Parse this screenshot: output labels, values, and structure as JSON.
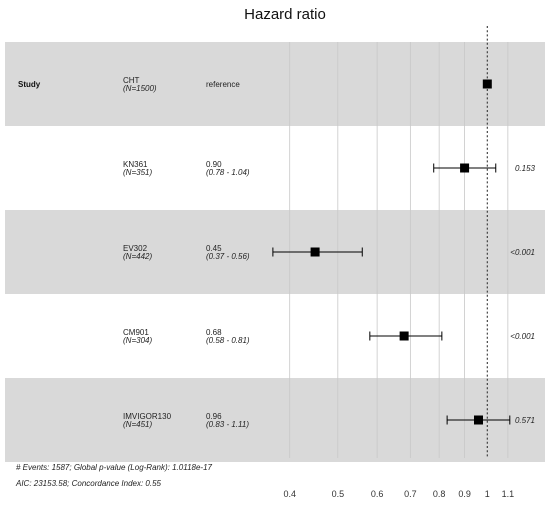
{
  "chart_data": {
    "type": "forest",
    "title": "Hazard ratio",
    "xscale": "log",
    "xlim": [
      0.35,
      1.17
    ],
    "reference_line": 1,
    "x_ticks": [
      "0.4",
      "0.5",
      "0.6",
      "0.7",
      "0.8",
      "0.9",
      "1",
      "1.1"
    ],
    "study_header": "Study",
    "rows": [
      {
        "study": "CHT",
        "n": "(N=1500)",
        "hr_text": "reference",
        "ci_text": "",
        "p_text": "",
        "hr": 1.0,
        "lo": null,
        "hi": null,
        "shaded": true
      },
      {
        "study": "KN361",
        "n": "(N=351)",
        "hr_text": "0.90",
        "ci_text": "(0.78 - 1.04)",
        "p_text": "0.153",
        "hr": 0.9,
        "lo": 0.78,
        "hi": 1.04,
        "shaded": false
      },
      {
        "study": "EV302",
        "n": "(N=442)",
        "hr_text": "0.45",
        "ci_text": "(0.37 - 0.56)",
        "p_text": "<0.001",
        "hr": 0.45,
        "lo": 0.37,
        "hi": 0.56,
        "shaded": true
      },
      {
        "study": "CM901",
        "n": "(N=304)",
        "hr_text": "0.68",
        "ci_text": "(0.58 - 0.81)",
        "p_text": "<0.001",
        "hr": 0.68,
        "lo": 0.58,
        "hi": 0.81,
        "shaded": false
      },
      {
        "study": "IMVIGOR130",
        "n": "(N=451)",
        "hr_text": "0.96",
        "ci_text": "(0.83 - 1.11)",
        "p_text": "0.571",
        "hr": 0.96,
        "lo": 0.83,
        "hi": 1.11,
        "shaded": true
      }
    ],
    "footnote_1": "# Events: 1587; Global p-value (Log-Rank): 1.0118e-17",
    "footnote_2": "AIC: 23153.58; Concordance Index: 0.55"
  }
}
